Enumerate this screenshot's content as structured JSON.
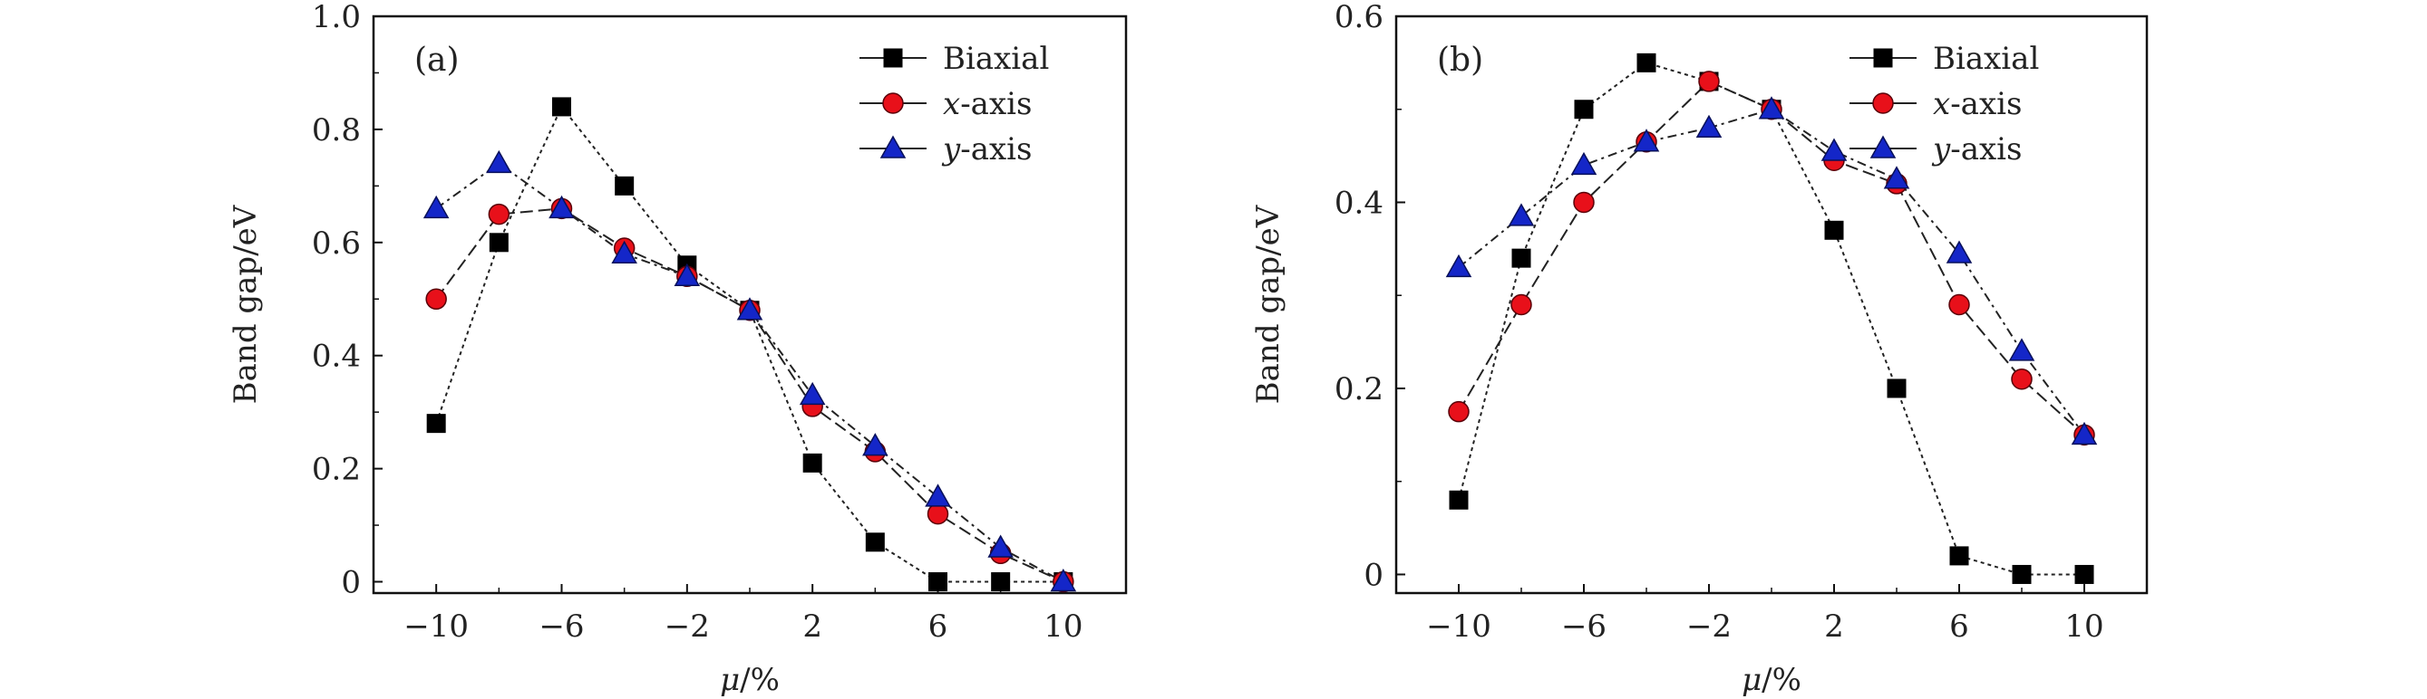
{
  "chart_data": [
    {
      "type": "line",
      "panel_label": "(a)",
      "xlabel_var": "μ",
      "xlabel_unit": "/%",
      "ylabel": "Band gap/eV",
      "xlim": [
        -12,
        12
      ],
      "ylim": [
        -0.02,
        1.0
      ],
      "x_ticks": [
        -10,
        -6,
        -2,
        2,
        6,
        10
      ],
      "x_tick_labels": [
        "−10",
        "−6",
        "−2",
        "2",
        "6",
        "10"
      ],
      "y_ticks": [
        0,
        0.2,
        0.4,
        0.6,
        0.8,
        1.0
      ],
      "y_tick_labels": [
        "0",
        "0.2",
        "0.4",
        "0.6",
        "0.8",
        "1.0"
      ],
      "legend_position": "top-right",
      "x": [
        -10,
        -8,
        -6,
        -4,
        -2,
        0,
        2,
        4,
        6,
        8,
        10
      ],
      "series": [
        {
          "name_italic": "",
          "name_rest": "Biaxial",
          "marker": "square",
          "color": "#000000",
          "values": [
            0.28,
            0.6,
            0.84,
            0.7,
            0.56,
            0.48,
            0.21,
            0.07,
            0.0,
            0.0,
            0.0
          ]
        },
        {
          "name_italic": "x",
          "name_rest": "-axis",
          "marker": "circle",
          "color": "#e8101a",
          "values": [
            0.5,
            0.65,
            0.66,
            0.59,
            0.54,
            0.48,
            0.31,
            0.23,
            0.12,
            0.05,
            0.0
          ]
        },
        {
          "name_italic": "y",
          "name_rest": "-axis",
          "marker": "triangle",
          "color": "#1426c8",
          "values": [
            0.66,
            0.74,
            0.66,
            0.58,
            0.54,
            0.48,
            0.33,
            0.24,
            0.15,
            0.06,
            0.0
          ]
        }
      ]
    },
    {
      "type": "line",
      "panel_label": "(b)",
      "xlabel_var": "μ",
      "xlabel_unit": "/%",
      "ylabel": "Band gap/eV",
      "xlim": [
        -12,
        12
      ],
      "ylim": [
        -0.02,
        0.6
      ],
      "x_ticks": [
        -10,
        -6,
        -2,
        2,
        6,
        10
      ],
      "x_tick_labels": [
        "−10",
        "−6",
        "−2",
        "2",
        "6",
        "10"
      ],
      "y_ticks": [
        0,
        0.2,
        0.4,
        0.6
      ],
      "y_tick_labels": [
        "0",
        "0.2",
        "0.4",
        "0.6"
      ],
      "legend_position": "top-right",
      "x": [
        -10,
        -8,
        -6,
        -4,
        -2,
        0,
        2,
        4,
        6,
        8,
        10
      ],
      "series": [
        {
          "name_italic": "",
          "name_rest": "Biaxial",
          "marker": "square",
          "color": "#000000",
          "values": [
            0.08,
            0.34,
            0.5,
            0.55,
            0.53,
            0.5,
            0.37,
            0.2,
            0.02,
            0.0,
            0.0
          ]
        },
        {
          "name_italic": "x",
          "name_rest": "-axis",
          "marker": "circle",
          "color": "#e8101a",
          "values": [
            0.175,
            0.29,
            0.4,
            0.465,
            0.53,
            0.5,
            0.445,
            0.42,
            0.29,
            0.21,
            0.15
          ]
        },
        {
          "name_italic": "y",
          "name_rest": "-axis",
          "marker": "triangle",
          "color": "#1426c8",
          "values": [
            0.33,
            0.385,
            0.44,
            0.465,
            0.48,
            0.5,
            0.455,
            0.425,
            0.345,
            0.24,
            0.15
          ]
        }
      ]
    }
  ]
}
